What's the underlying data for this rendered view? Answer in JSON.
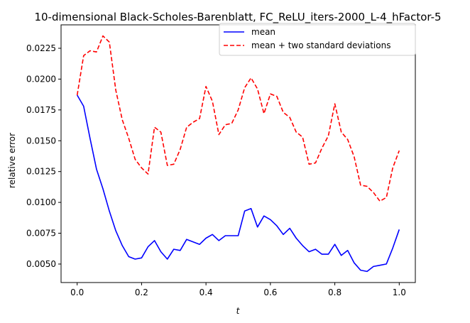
{
  "chart_data": {
    "type": "line",
    "title": "10-dimensional Black-Scholes-Barenblatt, FC_ReLU_iters-2000_L-4_hFactor-5",
    "xlabel": "t",
    "ylabel": "relative error",
    "xlim": [
      -0.05,
      1.05
    ],
    "ylim": [
      0.0035,
      0.0244
    ],
    "xticks": [
      0.0,
      0.2,
      0.4,
      0.6,
      0.8,
      1.0
    ],
    "xtick_labels": [
      "0.0",
      "0.2",
      "0.4",
      "0.6",
      "0.8",
      "1.0"
    ],
    "yticks": [
      0.005,
      0.0075,
      0.01,
      0.0125,
      0.015,
      0.0175,
      0.02,
      0.0225
    ],
    "ytick_labels": [
      "0.0050",
      "0.0075",
      "0.0100",
      "0.0125",
      "0.0150",
      "0.0175",
      "0.0200",
      "0.0225"
    ],
    "grid": false,
    "legend_position": "top-right",
    "x": [
      0.0,
      0.02,
      0.04,
      0.06,
      0.08,
      0.1,
      0.12,
      0.14,
      0.16,
      0.18,
      0.2,
      0.22,
      0.24,
      0.26,
      0.28,
      0.3,
      0.32,
      0.34,
      0.36,
      0.38,
      0.4,
      0.42,
      0.44,
      0.46,
      0.48,
      0.5,
      0.52,
      0.54,
      0.56,
      0.58,
      0.6,
      0.62,
      0.64,
      0.66,
      0.68,
      0.7,
      0.72,
      0.74,
      0.76,
      0.78,
      0.8,
      0.82,
      0.84,
      0.86,
      0.88,
      0.9,
      0.92,
      0.94,
      0.96,
      0.98,
      1.0
    ],
    "series": [
      {
        "name": "mean",
        "color": "#0000ff",
        "style": "solid",
        "values": [
          0.0187,
          0.0178,
          0.0152,
          0.0127,
          0.0111,
          0.0093,
          0.0077,
          0.0065,
          0.0056,
          0.0054,
          0.0055,
          0.0064,
          0.0069,
          0.006,
          0.0054,
          0.0062,
          0.0061,
          0.007,
          0.0068,
          0.0066,
          0.0071,
          0.0074,
          0.0069,
          0.0073,
          0.0073,
          0.0073,
          0.0093,
          0.0095,
          0.008,
          0.0089,
          0.0086,
          0.0081,
          0.0074,
          0.0079,
          0.0071,
          0.0065,
          0.006,
          0.0062,
          0.0058,
          0.0058,
          0.0066,
          0.0057,
          0.0061,
          0.0051,
          0.0045,
          0.0044,
          0.0048,
          0.0049,
          0.005,
          0.0063,
          0.0078
        ]
      },
      {
        "name": "mean + two standard deviations",
        "color": "#ff0000",
        "style": "dashed",
        "values": [
          0.0187,
          0.0219,
          0.0223,
          0.0222,
          0.0235,
          0.023,
          0.0191,
          0.0167,
          0.0152,
          0.0135,
          0.0128,
          0.0123,
          0.0161,
          0.0157,
          0.013,
          0.0131,
          0.0143,
          0.0161,
          0.0165,
          0.0168,
          0.0194,
          0.0182,
          0.0155,
          0.0163,
          0.0164,
          0.0175,
          0.0193,
          0.0201,
          0.0192,
          0.0172,
          0.0188,
          0.0186,
          0.0173,
          0.0169,
          0.0157,
          0.0153,
          0.0131,
          0.0132,
          0.0144,
          0.0154,
          0.018,
          0.0157,
          0.0151,
          0.0137,
          0.0114,
          0.0113,
          0.0108,
          0.0101,
          0.0104,
          0.0128,
          0.0142
        ]
      }
    ]
  }
}
